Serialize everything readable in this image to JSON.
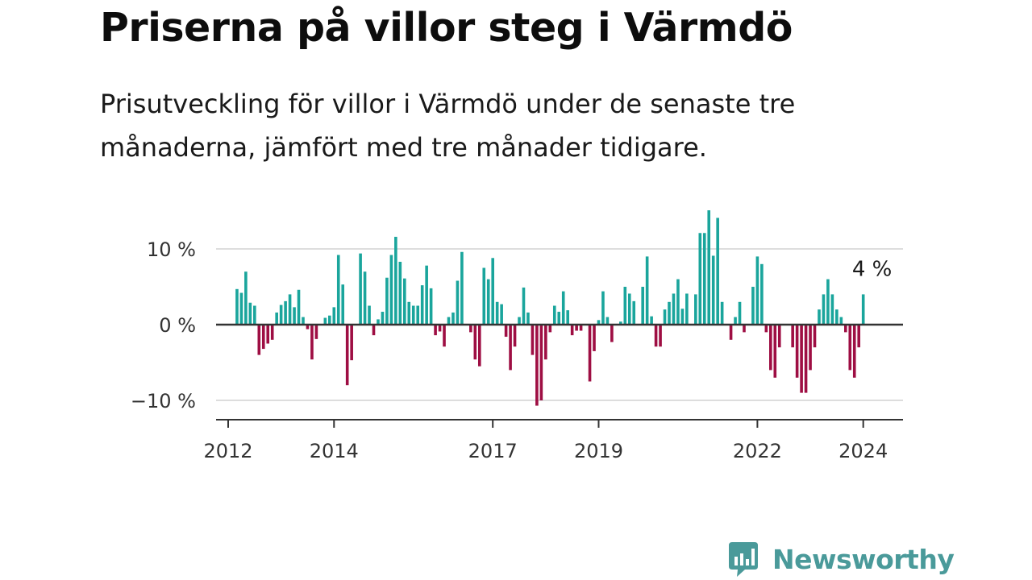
{
  "header": {
    "title": "Priserna på villor steg i Värmdö",
    "subtitle": "Prisutveckling för villor i Värmdö under de senaste tre månaderna, jämfört med tre månader tidigare."
  },
  "brand": {
    "name": "Newsworthy",
    "icon": "newsworthy-logo-icon",
    "color": "#4a9a9a"
  },
  "chart_data": {
    "type": "bar",
    "title": "",
    "xlabel": "",
    "ylabel": "",
    "y_unit": "%",
    "ylim": [
      -12.5,
      17.5
    ],
    "grid": true,
    "colors": {
      "positive": "#1aa59c",
      "negative": "#9e0e43",
      "zero_line": "#333333",
      "grid": "#dddddd"
    },
    "y_ticks": [
      {
        "value": 10,
        "label": "10 %"
      },
      {
        "value": 0,
        "label": "0 %"
      },
      {
        "value": -10,
        "label": "−10 %"
      }
    ],
    "x_ticks": [
      {
        "date": "2012-01",
        "label": "2012"
      },
      {
        "date": "2014-01",
        "label": "2014"
      },
      {
        "date": "2017-01",
        "label": "2017"
      },
      {
        "date": "2019-01",
        "label": "2019"
      },
      {
        "date": "2022-01",
        "label": "2022"
      },
      {
        "date": "2024-01",
        "label": "2024"
      }
    ],
    "annotation": {
      "date": "2024-03",
      "value": 4,
      "label": "4 %"
    },
    "series": [
      {
        "start": "2012-03",
        "frequency": "monthly",
        "values": [
          4.7,
          4.2,
          7.0,
          2.9,
          2.5,
          -4.0,
          -3.2,
          -2.5,
          -2.0,
          1.6,
          2.6,
          3.1,
          4.0,
          2.3,
          4.6,
          1.0,
          -0.6,
          -4.6,
          -1.9,
          0.0,
          0.9,
          1.2,
          2.3,
          9.2,
          5.3,
          -8.0,
          -4.7,
          0.0,
          9.4,
          7.0,
          2.5,
          -1.4,
          0.7,
          1.7,
          6.2,
          9.2,
          11.6,
          8.3,
          6.1,
          3.0,
          2.5,
          2.5,
          5.2,
          7.8,
          4.8,
          -1.4,
          -0.9,
          -2.9,
          1.0,
          1.6,
          5.8,
          9.6,
          0.0,
          -1.0,
          -4.6,
          -5.5,
          7.5,
          6.0,
          8.8,
          3.0,
          2.7,
          -1.6,
          -6.0,
          -2.9,
          1.0,
          4.9,
          1.6,
          -4.0,
          -10.7,
          -10.0,
          -4.6,
          -1.0,
          2.5,
          1.7,
          4.4,
          1.9,
          -1.4,
          -0.8,
          -0.8,
          0.0,
          -7.5,
          -3.5,
          0.6,
          4.4,
          1.0,
          -2.3,
          0.0,
          0.4,
          5.0,
          4.1,
          3.1,
          0.0,
          5.0,
          9.0,
          1.1,
          -2.9,
          -2.9,
          2.0,
          3.0,
          4.1,
          6.0,
          2.1,
          4.1,
          0.0,
          4.0,
          12.1,
          12.1,
          15.1,
          9.1,
          14.1,
          3.0,
          0.0,
          -2.0,
          1.0,
          3.0,
          -1.0,
          0.0,
          5.0,
          9.0,
          8.0,
          -1.0,
          -6.0,
          -7.0,
          -3.0,
          0.0,
          0.0,
          -3.0,
          -7.0,
          -9.0,
          -9.0,
          -6.0,
          -3.0,
          2.0,
          4.0,
          6.0,
          4.0,
          2.0,
          1.0,
          -1.0,
          -6.0,
          -7.0,
          -3.0,
          4.0
        ]
      }
    ]
  }
}
